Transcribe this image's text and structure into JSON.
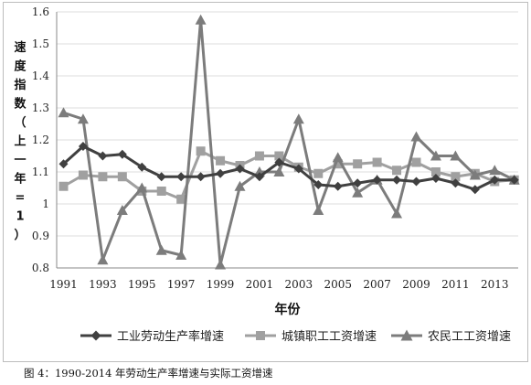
{
  "chart_data": {
    "type": "line",
    "title": "",
    "xlabel": "年份",
    "ylabel": "速度指数（上一年=1）",
    "ylim": [
      0.8,
      1.6
    ],
    "yticks": [
      "0.8",
      "0.9",
      "1",
      "1.1",
      "1.2",
      "1.3",
      "1.4",
      "1.5",
      "1.6"
    ],
    "xtick_labels": [
      "1991",
      "1993",
      "1995",
      "1997",
      "1999",
      "2001",
      "2003",
      "2005",
      "2007",
      "2009",
      "2011",
      "2013"
    ],
    "x": [
      1991,
      1992,
      1993,
      1994,
      1995,
      1996,
      1997,
      1998,
      1999,
      2000,
      2001,
      2002,
      2003,
      2004,
      2005,
      2006,
      2007,
      2008,
      2009,
      2010,
      2011,
      2012,
      2013,
      2014
    ],
    "grid": true,
    "legend_position": "bottom",
    "series": [
      {
        "name": "工业劳动生产率增速",
        "marker": "diamond",
        "color": "#404040",
        "values": [
          1.125,
          1.18,
          1.15,
          1.155,
          1.115,
          1.085,
          1.085,
          1.085,
          1.095,
          1.11,
          1.085,
          1.13,
          1.11,
          1.06,
          1.055,
          1.065,
          1.075,
          1.075,
          1.07,
          1.08,
          1.065,
          1.045,
          1.075,
          1.075
        ]
      },
      {
        "name": "城镇职工工资增速",
        "marker": "square",
        "color": "#a0a0a0",
        "values": [
          1.055,
          1.09,
          1.085,
          1.085,
          1.04,
          1.04,
          1.015,
          1.165,
          1.135,
          1.12,
          1.15,
          1.15,
          1.115,
          1.095,
          1.125,
          1.125,
          1.13,
          1.105,
          1.13,
          1.1,
          1.085,
          1.095,
          1.07,
          1.075
        ]
      },
      {
        "name": "农民工工资增速",
        "marker": "triangle",
        "color": "#7c7c7c",
        "values": [
          1.285,
          1.265,
          0.825,
          0.98,
          1.05,
          0.855,
          0.84,
          1.575,
          0.81,
          1.055,
          1.1,
          1.1,
          1.265,
          0.98,
          1.145,
          1.035,
          1.075,
          0.97,
          1.21,
          1.15,
          1.15,
          1.09,
          1.105,
          1.075
        ]
      }
    ]
  },
  "caption": "图 4：1990-2014 年劳动生产率增速与实际工资增速"
}
